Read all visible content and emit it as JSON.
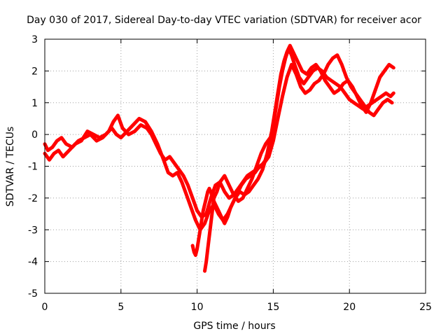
{
  "chart_data": {
    "type": "scatter",
    "title": "Day 030 of 2017, Sidereal Day-to-day VTEC variation (SDTVAR) for receiver acor",
    "xlabel": "GPS time / hours",
    "ylabel": "SDTVAR / TECUs",
    "xlim": [
      0,
      25
    ],
    "ylim": [
      -5,
      3
    ],
    "xticks": [
      0,
      5,
      10,
      15,
      20,
      25
    ],
    "yticks": [
      -5,
      -4,
      -3,
      -2,
      -1,
      0,
      1,
      2,
      3
    ],
    "grid": true,
    "legend": "none",
    "marker": "plus",
    "color": "#ff0000",
    "series": [
      {
        "x": [
          0.0,
          0.2,
          0.5,
          0.8,
          1.1,
          1.4,
          1.8,
          2.2,
          2.6,
          3.0,
          3.4,
          3.8,
          4.2,
          4.5,
          4.8,
          5.1,
          5.5,
          5.9,
          6.3,
          6.7,
          7.0,
          7.3,
          7.6,
          7.9,
          8.2,
          8.5,
          8.8,
          9.1,
          9.4,
          9.7,
          10.0,
          10.3,
          10.6,
          10.9,
          11.2,
          11.5,
          11.8,
          12.1,
          12.4,
          12.7,
          13.0,
          13.3,
          13.6,
          13.9,
          14.2,
          14.5,
          14.8,
          15.0,
          15.2,
          15.4,
          15.6,
          15.8,
          16.0,
          16.2,
          16.4,
          16.7,
          17.0,
          17.3,
          17.6,
          17.9,
          18.2,
          18.5,
          18.8,
          19.1,
          19.4,
          19.7,
          20.0,
          20.3,
          20.6,
          20.9,
          21.2,
          21.5,
          21.8,
          22.1,
          22.4,
          22.7,
          22.9
        ],
        "y": [
          -0.3,
          -0.5,
          -0.4,
          -0.2,
          -0.1,
          -0.3,
          -0.4,
          -0.2,
          -0.1,
          0.0,
          -0.2,
          -0.1,
          0.1,
          0.4,
          0.6,
          0.2,
          0.0,
          0.1,
          0.3,
          0.2,
          0.0,
          -0.3,
          -0.6,
          -0.8,
          -0.7,
          -0.9,
          -1.1,
          -1.3,
          -1.6,
          -2.0,
          -2.4,
          -2.6,
          -2.5,
          -2.0,
          -1.6,
          -1.5,
          -1.8,
          -2.0,
          -1.9,
          -1.7,
          -1.5,
          -1.3,
          -1.2,
          -1.1,
          -1.0,
          -0.8,
          -0.3,
          0.3,
          0.9,
          1.5,
          2.0,
          2.4,
          2.7,
          2.5,
          2.2,
          1.8,
          1.6,
          1.8,
          2.0,
          2.1,
          2.0,
          1.8,
          1.7,
          1.6,
          1.5,
          1.3,
          1.1,
          1.0,
          0.9,
          0.8,
          0.9,
          1.0,
          1.1,
          1.2,
          1.3,
          1.2,
          1.3
        ]
      },
      {
        "x": [
          0.0,
          0.3,
          0.6,
          0.9,
          1.2,
          1.6,
          2.0,
          2.4,
          2.8,
          3.2,
          3.6,
          4.0,
          4.4,
          4.7,
          5.0,
          5.4,
          5.8,
          6.2,
          6.6,
          7.0,
          7.4,
          7.8,
          8.1,
          8.4,
          8.7,
          9.0,
          9.3,
          9.6,
          9.9,
          10.2,
          10.5,
          10.8,
          11.1,
          11.4,
          11.7,
          12.0,
          12.3,
          12.6,
          12.9,
          13.2,
          13.5,
          13.8,
          14.1,
          14.4,
          14.7,
          15.0,
          15.3,
          15.6,
          15.9,
          16.2,
          16.5,
          16.8,
          17.1,
          17.4,
          17.7,
          18.0,
          18.3,
          18.6,
          18.9,
          19.2,
          19.5,
          19.8,
          20.1,
          20.4,
          20.7,
          21.0,
          21.3,
          21.6,
          21.9,
          22.2,
          22.5,
          22.8
        ],
        "y": [
          -0.6,
          -0.8,
          -0.6,
          -0.5,
          -0.7,
          -0.5,
          -0.3,
          -0.2,
          0.1,
          0.0,
          -0.1,
          0.0,
          0.2,
          0.0,
          -0.1,
          0.1,
          0.3,
          0.5,
          0.4,
          0.1,
          -0.3,
          -0.8,
          -1.2,
          -1.3,
          -1.2,
          -1.5,
          -1.9,
          -2.3,
          -2.7,
          -3.0,
          -2.8,
          -2.4,
          -2.2,
          -2.5,
          -2.7,
          -2.5,
          -2.2,
          -1.9,
          -1.6,
          -1.4,
          -1.3,
          -1.2,
          -1.0,
          -0.9,
          -0.7,
          -0.2,
          0.5,
          1.2,
          1.8,
          2.2,
          1.9,
          1.5,
          1.3,
          1.4,
          1.6,
          1.7,
          1.9,
          2.2,
          2.4,
          2.5,
          2.2,
          1.8,
          1.5,
          1.3,
          1.1,
          0.9,
          0.7,
          0.6,
          0.8,
          1.0,
          1.1,
          1.0
        ]
      },
      {
        "x": [
          9.7,
          9.8,
          9.9,
          10.0,
          10.1,
          10.2,
          10.3,
          10.4,
          10.5,
          10.6,
          10.7,
          10.8,
          10.9,
          11.0,
          11.2,
          11.4,
          11.6,
          11.8,
          12.0,
          12.2,
          12.5,
          12.8,
          13.1,
          13.4,
          13.7,
          14.0,
          14.3,
          14.6,
          14.9,
          15.1,
          15.3,
          15.5,
          15.7,
          15.9,
          16.1,
          16.3,
          16.6,
          16.9,
          17.2,
          17.5,
          17.8,
          18.1,
          18.4,
          18.7,
          19.0,
          19.3,
          19.6,
          19.9,
          20.2,
          20.5,
          20.8,
          21.1,
          21.4,
          21.7,
          22.0,
          22.3,
          22.6,
          22.9
        ],
        "y": [
          -3.5,
          -3.7,
          -3.8,
          -3.6,
          -3.3,
          -3.0,
          -2.7,
          -2.4,
          -2.2,
          -2.0,
          -1.8,
          -1.7,
          -1.8,
          -2.0,
          -2.2,
          -2.4,
          -2.6,
          -2.8,
          -2.6,
          -2.3,
          -2.0,
          -1.8,
          -1.9,
          -1.8,
          -1.6,
          -1.4,
          -1.1,
          -0.6,
          0.1,
          0.7,
          1.3,
          1.9,
          2.3,
          2.6,
          2.8,
          2.6,
          2.3,
          2.0,
          1.9,
          2.1,
          2.2,
          2.0,
          1.7,
          1.5,
          1.3,
          1.4,
          1.6,
          1.7,
          1.5,
          1.2,
          0.9,
          0.7,
          1.0,
          1.4,
          1.8,
          2.0,
          2.2,
          2.1
        ]
      },
      {
        "x": [
          10.5,
          10.6,
          10.7,
          10.8,
          10.9,
          11.0,
          11.1,
          11.3,
          11.5,
          11.8,
          12.1,
          12.4,
          12.7,
          13.0,
          13.3,
          13.6,
          13.9,
          14.2,
          14.5,
          14.8
        ],
        "y": [
          -4.3,
          -4.0,
          -3.6,
          -3.2,
          -2.8,
          -2.4,
          -2.0,
          -1.8,
          -1.5,
          -1.3,
          -1.6,
          -1.9,
          -2.1,
          -2.0,
          -1.7,
          -1.4,
          -1.0,
          -0.6,
          -0.3,
          -0.1
        ]
      }
    ]
  }
}
